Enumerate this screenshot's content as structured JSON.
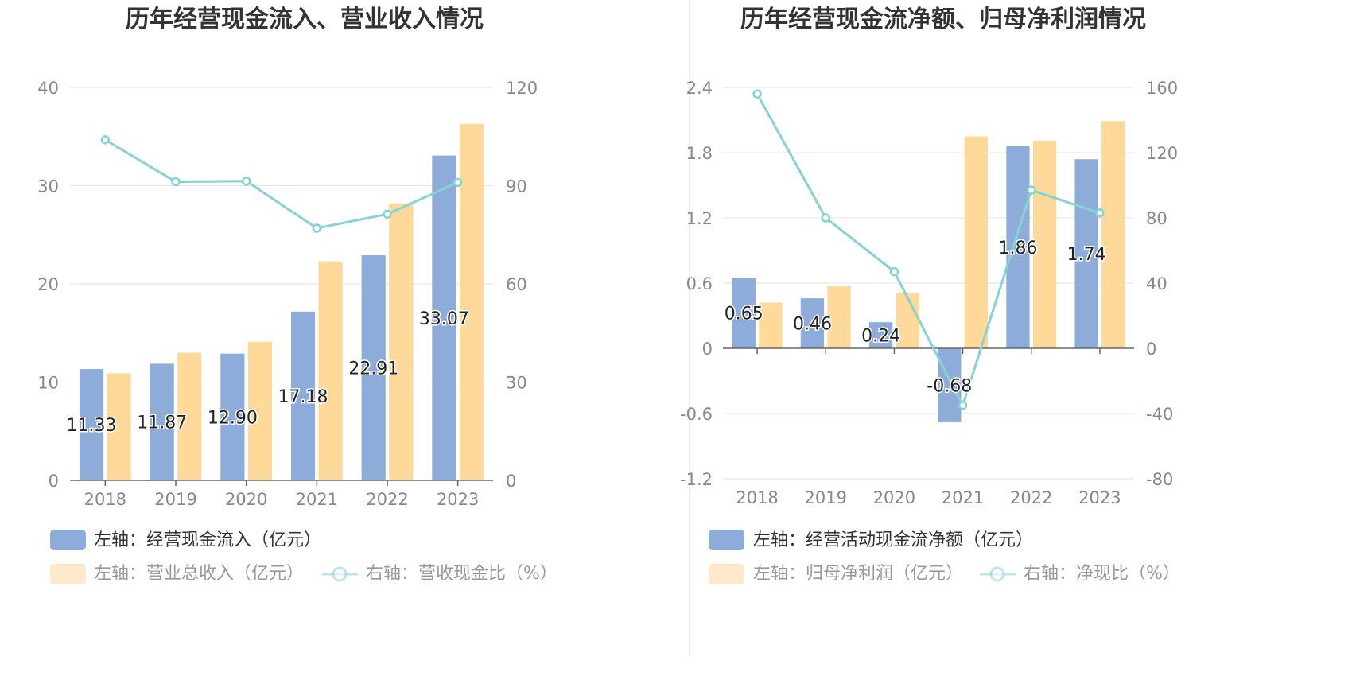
{
  "colors": {
    "blue": "#8eacd9",
    "orange": "#fed99a",
    "line": "#86d3d6",
    "grid": "#dfe3ef",
    "axis": "#666666",
    "tick": "#888888"
  },
  "chart_data": [
    {
      "type": "bar",
      "title": "历年经营现金流入、营业收入情况",
      "categories": [
        "2018",
        "2019",
        "2020",
        "2021",
        "2022",
        "2023"
      ],
      "ylim_left": [
        0,
        40
      ],
      "ylim_right": [
        0,
        120
      ],
      "yticks_left": [
        "0",
        "10",
        "20",
        "30",
        "40"
      ],
      "yticks_right": [
        "0",
        "30",
        "60",
        "90",
        "120"
      ],
      "grid": true,
      "legend_position": "bottom",
      "series": [
        {
          "name": "左轴：经营现金流入（亿元）",
          "axis": "left",
          "type": "bar",
          "values": [
            11.33,
            11.87,
            12.9,
            17.18,
            22.91,
            33.07
          ],
          "labels": [
            "11.33",
            "11.87",
            "12.90",
            "17.18",
            "22.91",
            "33.07"
          ]
        },
        {
          "name": "左轴：营业总收入（亿元）",
          "axis": "left",
          "type": "bar",
          "values": [
            10.9,
            13.0,
            14.1,
            22.3,
            28.2,
            36.3
          ]
        },
        {
          "name": "右轴：营收现金比（%）",
          "axis": "right",
          "type": "line",
          "values": [
            104,
            91.2,
            91.4,
            77,
            81.3,
            91
          ]
        }
      ]
    },
    {
      "type": "bar",
      "title": "历年经营现金流净额、归母净利润情况",
      "categories": [
        "2018",
        "2019",
        "2020",
        "2021",
        "2022",
        "2023"
      ],
      "ylim_left": [
        -1.2,
        2.4
      ],
      "ylim_right": [
        -80,
        160
      ],
      "yticks_left": [
        "-1.2",
        "-0.6",
        "0",
        "0.6",
        "1.2",
        "1.8",
        "2.4"
      ],
      "yticks_right": [
        "-80",
        "-40",
        "0",
        "40",
        "80",
        "120",
        "160"
      ],
      "grid": true,
      "legend_position": "bottom",
      "series": [
        {
          "name": "左轴：经营活动现金流净额（亿元）",
          "axis": "left",
          "type": "bar",
          "values": [
            0.65,
            0.46,
            0.24,
            -0.68,
            1.86,
            1.74
          ],
          "labels": [
            "0.65",
            "0.46",
            "0.24",
            "-0.68",
            "1.86",
            "1.74"
          ]
        },
        {
          "name": "左轴：归母净利润（亿元）",
          "axis": "left",
          "type": "bar",
          "values": [
            0.42,
            0.57,
            0.51,
            1.95,
            1.91,
            2.09
          ]
        },
        {
          "name": "右轴：净现比（%）",
          "axis": "right",
          "type": "line",
          "values": [
            156,
            80,
            47,
            -35,
            97,
            83
          ]
        }
      ]
    }
  ]
}
